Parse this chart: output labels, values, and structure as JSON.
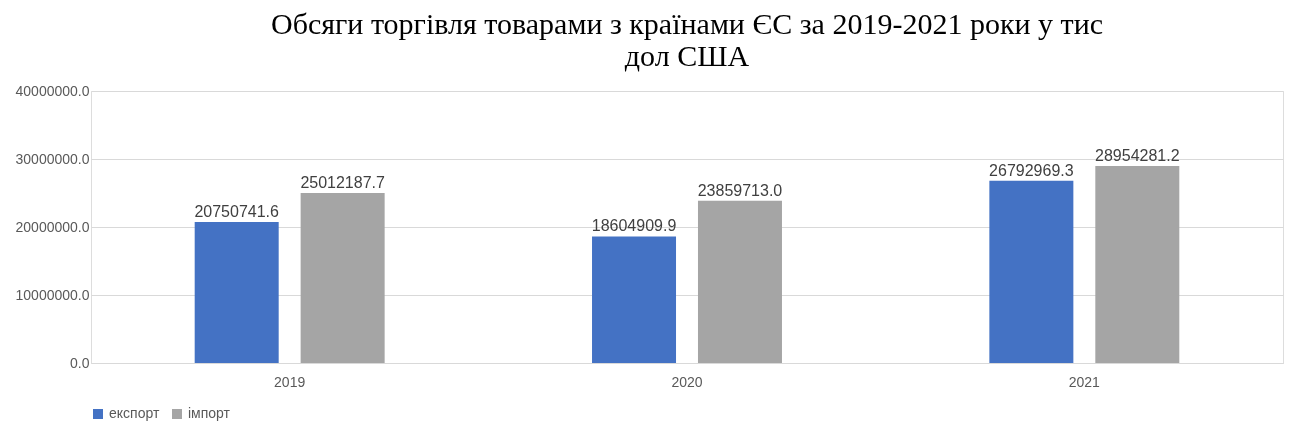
{
  "chart_data": {
    "type": "bar",
    "title": "Обсяги торгівля товарами з країнами ЄС за 2019-2021 роки у тис дол США",
    "categories": [
      "2019",
      "2020",
      "2021"
    ],
    "series": [
      {
        "name": "експорт",
        "color": "#4472c4",
        "values": [
          20750741.6,
          18604909.9,
          26792969.3
        ],
        "value_labels": [
          "20750741.6",
          "18604909.9",
          "26792969.3"
        ]
      },
      {
        "name": "імпорт",
        "color": "#a5a5a5",
        "values": [
          25012187.7,
          23859713.0,
          28954281.2
        ],
        "value_labels": [
          "25012187.7",
          "23859713.0",
          "28954281.2"
        ]
      }
    ],
    "ylim": [
      0,
      40000000
    ],
    "yticks": [
      {
        "value": 0,
        "label": "0.0"
      },
      {
        "value": 10000000,
        "label": "10000000.0"
      },
      {
        "value": 20000000,
        "label": "20000000.0"
      },
      {
        "value": 30000000,
        "label": "30000000.0"
      },
      {
        "value": 40000000,
        "label": "40000000.0"
      }
    ],
    "grid": "y",
    "legend": "bottom"
  }
}
